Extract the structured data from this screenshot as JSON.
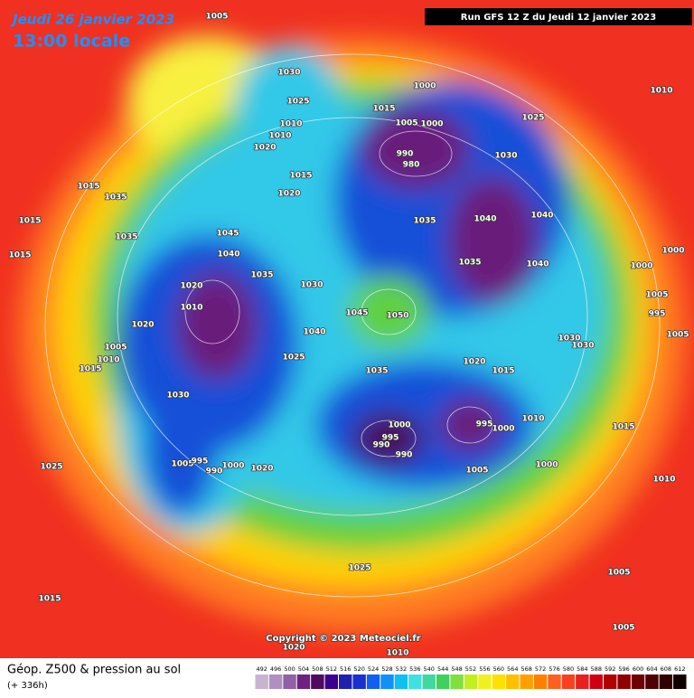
{
  "header": {
    "date": "Jeudi 26 janvier 2023",
    "time": "13:00 locale",
    "run": "Run GFS 12 Z du Jeudi 12 janvier 2023"
  },
  "copyright": "Copyright © 2023 Meteociel.fr",
  "footer": {
    "title": "Géop. Z500 & pression au sol",
    "lead": "(+ 336h)"
  },
  "pressure_labels": [
    1005,
    1030,
    1025,
    1010,
    1010,
    1020,
    1015,
    1020,
    1000,
    1015,
    1005,
    1000,
    990,
    980,
    1030,
    1025,
    1010,
    1035,
    1040,
    1040,
    1035,
    1040,
    1000,
    1000,
    1005,
    995,
    1005,
    1030,
    1030,
    1050,
    1045,
    1030,
    1040,
    1035,
    1040,
    1045,
    1035,
    1035,
    1015,
    1015,
    1015,
    1020,
    1010,
    1020,
    1005,
    1010,
    1015,
    1030,
    1025,
    1005,
    995,
    990,
    1000,
    1020,
    1025,
    1035,
    1020,
    1015,
    1010,
    995,
    1000,
    1000,
    995,
    990,
    990,
    1005,
    1000,
    1015,
    1010,
    1025,
    1005,
    1005,
    1015,
    1020,
    1010
  ],
  "color_scale": [
    {
      "value": 492,
      "color": "#c8b4d0"
    },
    {
      "value": 496,
      "color": "#b090c0"
    },
    {
      "value": 500,
      "color": "#9060a8"
    },
    {
      "value": 504,
      "color": "#702080"
    },
    {
      "value": 508,
      "color": "#500a60"
    },
    {
      "value": 512,
      "color": "#3c0090"
    },
    {
      "value": 516,
      "color": "#2020b0"
    },
    {
      "value": 520,
      "color": "#1830d0"
    },
    {
      "value": 524,
      "color": "#1060f0"
    },
    {
      "value": 528,
      "color": "#1090f8"
    },
    {
      "value": 532,
      "color": "#10c0f0"
    },
    {
      "value": 536,
      "color": "#40e0e0"
    },
    {
      "value": 540,
      "color": "#40d8a0"
    },
    {
      "value": 544,
      "color": "#40d060"
    },
    {
      "value": 548,
      "color": "#80e040"
    },
    {
      "value": 552,
      "color": "#c0f020"
    },
    {
      "value": 556,
      "color": "#f0f020"
    },
    {
      "value": 560,
      "color": "#ffe000"
    },
    {
      "value": 564,
      "color": "#ffc000"
    },
    {
      "value": 568,
      "color": "#ffa000"
    },
    {
      "value": 572,
      "color": "#ff8000"
    },
    {
      "value": 576,
      "color": "#ff6020"
    },
    {
      "value": 580,
      "color": "#f84020"
    },
    {
      "value": 584,
      "color": "#e82020"
    },
    {
      "value": 588,
      "color": "#d00010"
    },
    {
      "value": 592,
      "color": "#b00000"
    },
    {
      "value": 596,
      "color": "#900000"
    },
    {
      "value": 600,
      "color": "#700000"
    },
    {
      "value": 604,
      "color": "#500000"
    },
    {
      "value": 608,
      "color": "#300000"
    },
    {
      "value": 612,
      "color": "#100000"
    }
  ]
}
